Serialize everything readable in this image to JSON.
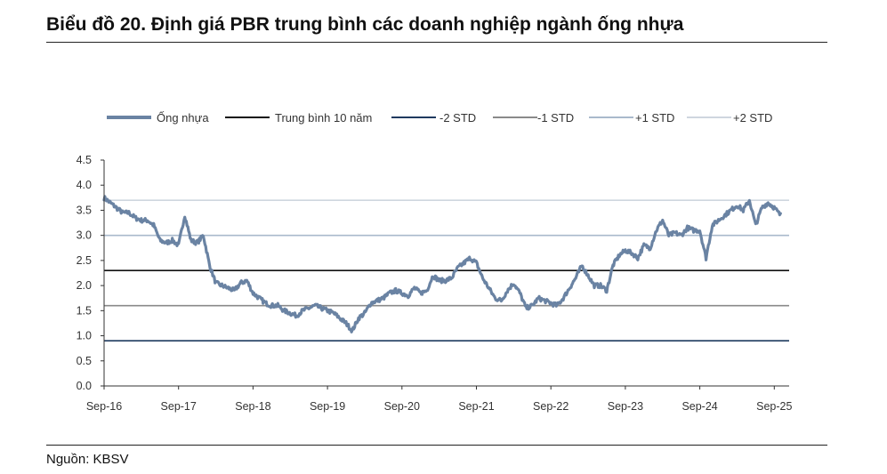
{
  "title": "Biểu đồ 20. Định giá PBR trung bình các doanh nghiệp ngành ống nhựa",
  "source": "Nguồn: KBSV",
  "chart_data": {
    "type": "line",
    "title": "",
    "xlabel": "",
    "ylabel": "",
    "ylim": [
      0,
      4.5
    ],
    "yticks": [
      "0.0",
      "0.5",
      "1.0",
      "1.5",
      "2.0",
      "2.5",
      "3.0",
      "3.5",
      "4.0",
      "4.5"
    ],
    "xticks": [
      "Sep-16",
      "Sep-17",
      "Sep-18",
      "Sep-19",
      "Sep-20",
      "Sep-21",
      "Sep-22",
      "Sep-23",
      "Sep-24",
      "Sep-25"
    ],
    "grid": false,
    "legend_position": "top",
    "series": [
      {
        "name": "Ống nhựa",
        "color": "#6a83a3",
        "x": [
          "2016-09",
          "2016-10",
          "2016-11",
          "2016-12",
          "2017-01",
          "2017-02",
          "2017-03",
          "2017-04",
          "2017-05",
          "2017-06",
          "2017-07",
          "2017-08",
          "2017-09",
          "2017-10",
          "2017-11",
          "2017-12",
          "2018-01",
          "2018-02",
          "2018-03",
          "2018-04",
          "2018-05",
          "2018-06",
          "2018-07",
          "2018-08",
          "2018-09",
          "2018-10",
          "2018-11",
          "2018-12",
          "2019-01",
          "2019-02",
          "2019-03",
          "2019-04",
          "2019-05",
          "2019-06",
          "2019-07",
          "2019-08",
          "2019-09",
          "2019-10",
          "2019-11",
          "2019-12",
          "2020-01",
          "2020-02",
          "2020-03",
          "2020-04",
          "2020-05",
          "2020-06",
          "2020-07",
          "2020-08",
          "2020-09",
          "2020-10",
          "2020-11",
          "2020-12",
          "2021-01",
          "2021-02",
          "2021-03",
          "2021-04",
          "2021-05",
          "2021-06",
          "2021-07",
          "2021-08",
          "2021-09",
          "2021-10",
          "2021-11",
          "2021-12",
          "2022-01",
          "2022-02",
          "2022-03",
          "2022-04",
          "2022-05",
          "2022-06",
          "2022-07",
          "2022-08",
          "2022-09",
          "2022-10",
          "2022-11",
          "2022-12",
          "2023-01",
          "2023-02",
          "2023-03",
          "2023-04",
          "2023-05",
          "2023-06",
          "2023-07",
          "2023-08",
          "2023-09",
          "2023-10",
          "2023-11",
          "2023-12",
          "2024-01",
          "2024-02",
          "2024-03",
          "2024-04",
          "2024-05",
          "2024-06",
          "2024-07",
          "2024-08",
          "2024-09",
          "2024-10",
          "2024-11",
          "2024-12",
          "2025-01",
          "2025-02",
          "2025-03",
          "2025-04",
          "2025-05",
          "2025-06",
          "2025-07",
          "2025-08",
          "2025-09",
          "2025-10"
        ],
        "values": [
          3.75,
          3.65,
          3.55,
          3.45,
          3.45,
          3.35,
          3.3,
          3.3,
          3.2,
          2.9,
          2.85,
          2.9,
          2.8,
          3.4,
          2.9,
          2.85,
          3.0,
          2.4,
          2.05,
          2.0,
          1.95,
          1.9,
          2.05,
          2.1,
          1.85,
          1.75,
          1.65,
          1.6,
          1.6,
          1.5,
          1.45,
          1.4,
          1.5,
          1.55,
          1.6,
          1.55,
          1.5,
          1.45,
          1.35,
          1.25,
          1.1,
          1.35,
          1.45,
          1.65,
          1.7,
          1.75,
          1.85,
          1.9,
          1.85,
          1.8,
          1.95,
          1.85,
          1.9,
          2.2,
          2.1,
          2.1,
          2.15,
          2.35,
          2.45,
          2.55,
          2.45,
          2.15,
          1.95,
          1.75,
          1.7,
          1.9,
          2.05,
          1.85,
          1.55,
          1.6,
          1.75,
          1.7,
          1.65,
          1.6,
          1.75,
          1.95,
          2.15,
          2.4,
          2.2,
          2.0,
          2.0,
          1.9,
          2.4,
          2.6,
          2.7,
          2.65,
          2.55,
          2.8,
          2.75,
          3.1,
          3.3,
          3.0,
          3.05,
          3.0,
          3.15,
          3.1,
          3.1,
          2.55,
          3.2,
          3.3,
          3.4,
          3.5,
          3.6,
          3.5,
          3.7,
          3.2,
          3.55,
          3.65,
          3.55,
          3.4
        ]
      },
      {
        "name": "Trung bình 10 năm",
        "color": "#111111",
        "values": [
          2.3,
          2.3
        ]
      },
      {
        "name": "-2 STD",
        "color": "#1f3a5f",
        "values": [
          0.9,
          0.9
        ]
      },
      {
        "name": "-1 STD",
        "color": "#8a8a8a",
        "values": [
          1.6,
          1.6
        ]
      },
      {
        "name": "+1 STD",
        "color": "#a9b9cc",
        "values": [
          3.0,
          3.0
        ]
      },
      {
        "name": "+2 STD",
        "color": "#cfd6df",
        "values": [
          3.7,
          3.7
        ]
      }
    ]
  }
}
